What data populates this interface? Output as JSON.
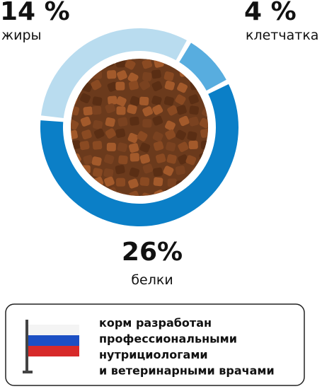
{
  "chart_data": {
    "type": "donut",
    "categories": [
      "жиры",
      "клетчатка",
      "белки"
    ],
    "values": [
      14,
      4,
      26
    ],
    "value_labels": [
      "14 %",
      "4 %",
      "26%"
    ],
    "colors": [
      "#b9dcef",
      "#58addf",
      "#0b7fc7"
    ]
  },
  "badge": {
    "lines": [
      "корм разработан",
      "профессиональными",
      "нутрициологами",
      "и ветеринарными врачами"
    ]
  }
}
